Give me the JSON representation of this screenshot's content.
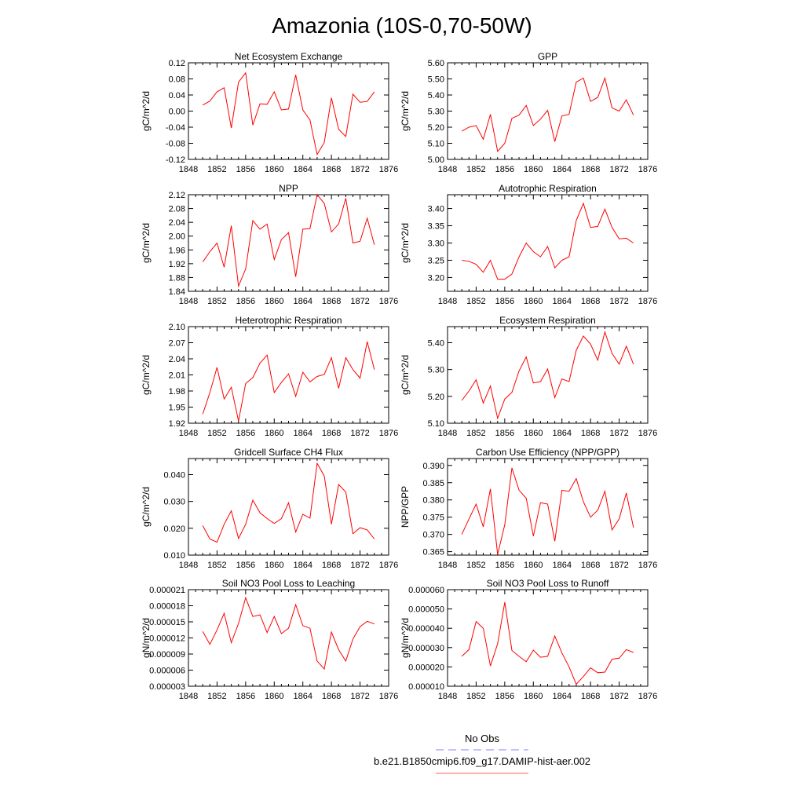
{
  "figure": {
    "title": "Amazonia (10S-0,70-50W)",
    "legend": [
      {
        "label": "No Obs",
        "color": "#8080ff",
        "dash": true
      },
      {
        "label": "b.e21.B1850cmip6.f09_g17.DAMIP-hist-aer.002",
        "color": "#ff6060",
        "dash": false
      }
    ],
    "line_color": "#ff0000"
  },
  "chart_data": [
    {
      "type": "line",
      "title": "Net Ecosystem Exchange",
      "ylabel": "gC/m^2/d",
      "xlim": [
        1848,
        1876
      ],
      "xticks": [
        1848,
        1852,
        1856,
        1860,
        1864,
        1868,
        1872,
        1876
      ],
      "ylim": [
        -0.12,
        0.12
      ],
      "yticks": [
        "-0.12",
        "-0.08",
        "-0.04",
        "0.00",
        "0.04",
        "0.08",
        "0.12"
      ],
      "x": [
        1850,
        1851,
        1852,
        1853,
        1854,
        1855,
        1856,
        1857,
        1858,
        1859,
        1860,
        1861,
        1862,
        1863,
        1864,
        1865,
        1866,
        1867,
        1868,
        1869,
        1870,
        1871,
        1872,
        1873,
        1874
      ],
      "values": [
        0.015,
        0.025,
        0.048,
        0.058,
        -0.042,
        0.072,
        0.095,
        -0.035,
        0.018,
        0.017,
        0.048,
        0.003,
        0.005,
        0.09,
        0.003,
        -0.022,
        -0.108,
        -0.078,
        0.033,
        -0.045,
        -0.063,
        0.042,
        0.022,
        0.024,
        0.048
      ]
    },
    {
      "type": "line",
      "title": "GPP",
      "ylabel": "gC/m^2/d",
      "xlim": [
        1848,
        1876
      ],
      "xticks": [
        1848,
        1852,
        1856,
        1860,
        1864,
        1868,
        1872,
        1876
      ],
      "ylim": [
        5.0,
        5.6
      ],
      "yticks": [
        "5.00",
        "5.10",
        "5.20",
        "5.30",
        "5.40",
        "5.50",
        "5.60"
      ],
      "x": [
        1850,
        1851,
        1852,
        1853,
        1854,
        1855,
        1856,
        1857,
        1858,
        1859,
        1860,
        1861,
        1862,
        1863,
        1864,
        1865,
        1866,
        1867,
        1868,
        1869,
        1870,
        1871,
        1872,
        1873,
        1874
      ],
      "values": [
        5.175,
        5.2,
        5.21,
        5.125,
        5.28,
        5.05,
        5.1,
        5.255,
        5.275,
        5.335,
        5.21,
        5.25,
        5.305,
        5.11,
        5.27,
        5.28,
        5.48,
        5.505,
        5.36,
        5.385,
        5.505,
        5.32,
        5.3,
        5.37,
        5.275
      ]
    },
    {
      "type": "line",
      "title": "NPP",
      "ylabel": "gC/m^2/d",
      "xlim": [
        1848,
        1876
      ],
      "xticks": [
        1848,
        1852,
        1856,
        1860,
        1864,
        1868,
        1872,
        1876
      ],
      "ylim": [
        1.84,
        2.12
      ],
      "yticks": [
        "1.84",
        "1.88",
        "1.92",
        "1.96",
        "2.00",
        "2.04",
        "2.08",
        "2.12"
      ],
      "x": [
        1850,
        1851,
        1852,
        1853,
        1854,
        1855,
        1856,
        1857,
        1858,
        1859,
        1860,
        1861,
        1862,
        1863,
        1864,
        1865,
        1866,
        1867,
        1868,
        1869,
        1870,
        1871,
        1872,
        1873,
        1874
      ],
      "values": [
        1.925,
        1.955,
        1.98,
        1.91,
        2.03,
        1.855,
        1.905,
        2.045,
        2.02,
        2.035,
        1.932,
        1.99,
        2.01,
        1.882,
        2.02,
        2.022,
        2.12,
        2.095,
        2.012,
        2.035,
        2.11,
        1.98,
        1.985,
        2.052,
        1.975
      ]
    },
    {
      "type": "line",
      "title": "Autotrophic Respiration",
      "ylabel": "gC/m^2/d",
      "xlim": [
        1848,
        1876
      ],
      "xticks": [
        1848,
        1852,
        1856,
        1860,
        1864,
        1868,
        1872,
        1876
      ],
      "ylim": [
        3.16,
        3.44
      ],
      "yticks": [
        "3.20",
        "3.25",
        "3.30",
        "3.35",
        "3.40"
      ],
      "x": [
        1850,
        1851,
        1852,
        1853,
        1854,
        1855,
        1856,
        1857,
        1858,
        1859,
        1860,
        1861,
        1862,
        1863,
        1864,
        1865,
        1866,
        1867,
        1868,
        1869,
        1870,
        1871,
        1872,
        1873,
        1874
      ],
      "values": [
        3.25,
        3.247,
        3.238,
        3.215,
        3.25,
        3.195,
        3.195,
        3.21,
        3.26,
        3.3,
        3.275,
        3.26,
        3.29,
        3.228,
        3.25,
        3.26,
        3.365,
        3.415,
        3.345,
        3.348,
        3.398,
        3.345,
        3.312,
        3.314,
        3.3
      ]
    },
    {
      "type": "line",
      "title": "Heterotrophic Respiration",
      "ylabel": "gC/m^2/d",
      "xlim": [
        1848,
        1876
      ],
      "xticks": [
        1848,
        1852,
        1856,
        1860,
        1864,
        1868,
        1872,
        1876
      ],
      "ylim": [
        1.92,
        2.1
      ],
      "yticks": [
        "1.92",
        "1.95",
        "1.98",
        "2.01",
        "2.04",
        "2.07",
        "2.10"
      ],
      "x": [
        1850,
        1851,
        1852,
        1853,
        1854,
        1855,
        1856,
        1857,
        1858,
        1859,
        1860,
        1861,
        1862,
        1863,
        1864,
        1865,
        1866,
        1867,
        1868,
        1869,
        1870,
        1871,
        1872,
        1873,
        1874
      ],
      "values": [
        1.937,
        1.977,
        2.024,
        1.965,
        1.987,
        1.924,
        1.994,
        2.005,
        2.032,
        2.047,
        1.977,
        1.996,
        2.012,
        1.97,
        2.015,
        1.997,
        2.007,
        2.011,
        2.042,
        1.985,
        2.042,
        2.02,
        2.004,
        2.072,
        2.02
      ]
    },
    {
      "type": "line",
      "title": "Ecosystem Respiration",
      "ylabel": "gC/m^2/d",
      "xlim": [
        1848,
        1876
      ],
      "xticks": [
        1848,
        1852,
        1856,
        1860,
        1864,
        1868,
        1872,
        1876
      ],
      "ylim": [
        5.1,
        5.46
      ],
      "yticks": [
        "5.10",
        "5.20",
        "5.30",
        "5.40"
      ],
      "x": [
        1850,
        1851,
        1852,
        1853,
        1854,
        1855,
        1856,
        1857,
        1858,
        1859,
        1860,
        1861,
        1862,
        1863,
        1864,
        1865,
        1866,
        1867,
        1868,
        1869,
        1870,
        1871,
        1872,
        1873,
        1874
      ],
      "values": [
        5.185,
        5.22,
        5.262,
        5.175,
        5.238,
        5.118,
        5.19,
        5.215,
        5.295,
        5.347,
        5.25,
        5.255,
        5.302,
        5.195,
        5.265,
        5.255,
        5.372,
        5.425,
        5.395,
        5.335,
        5.44,
        5.36,
        5.32,
        5.387,
        5.32
      ]
    },
    {
      "type": "line",
      "title": "Gridcell Surface CH4 Flux",
      "ylabel": "gC/m^2/d",
      "xlim": [
        1848,
        1876
      ],
      "xticks": [
        1848,
        1852,
        1856,
        1860,
        1864,
        1868,
        1872,
        1876
      ],
      "ylim": [
        0.01,
        0.046
      ],
      "yticks": [
        "0.010",
        "0.020",
        "0.030",
        "0.040"
      ],
      "x": [
        1850,
        1851,
        1852,
        1853,
        1854,
        1855,
        1856,
        1857,
        1858,
        1859,
        1860,
        1861,
        1862,
        1863,
        1864,
        1865,
        1866,
        1867,
        1868,
        1869,
        1870,
        1871,
        1872,
        1873,
        1874
      ],
      "values": [
        0.021,
        0.016,
        0.0148,
        0.0215,
        0.0265,
        0.0162,
        0.0215,
        0.0305,
        0.0258,
        0.0236,
        0.0218,
        0.0236,
        0.0295,
        0.0186,
        0.0252,
        0.0238,
        0.0442,
        0.0395,
        0.0215,
        0.0363,
        0.0335,
        0.018,
        0.0202,
        0.0194,
        0.016
      ]
    },
    {
      "type": "line",
      "title": "Carbon Use Efficiency (NPP/GPP)",
      "ylabel": "NPP/GPP",
      "xlim": [
        1848,
        1876
      ],
      "xticks": [
        1848,
        1852,
        1856,
        1860,
        1864,
        1868,
        1872,
        1876
      ],
      "ylim": [
        0.364,
        0.392
      ],
      "yticks": [
        "0.365",
        "0.370",
        "0.375",
        "0.380",
        "0.385",
        "0.390"
      ],
      "x": [
        1850,
        1851,
        1852,
        1853,
        1854,
        1855,
        1856,
        1857,
        1858,
        1859,
        1860,
        1861,
        1862,
        1863,
        1864,
        1865,
        1866,
        1867,
        1868,
        1869,
        1870,
        1871,
        1872,
        1873,
        1874
      ],
      "values": [
        0.37,
        0.3745,
        0.3788,
        0.3722,
        0.3832,
        0.3642,
        0.3728,
        0.3893,
        0.3828,
        0.3805,
        0.3695,
        0.3792,
        0.3788,
        0.368,
        0.3828,
        0.3825,
        0.3862,
        0.3795,
        0.375,
        0.377,
        0.3825,
        0.3713,
        0.3745,
        0.382,
        0.372
      ]
    },
    {
      "type": "line",
      "title": "Soil NO3 Pool Loss to Leaching",
      "ylabel": "gN/m^2/d",
      "xlim": [
        1848,
        1876
      ],
      "xticks": [
        1848,
        1852,
        1856,
        1860,
        1864,
        1868,
        1872,
        1876
      ],
      "ylim": [
        3e-06,
        2.1e-05
      ],
      "yticks": [
        "0.000003",
        "0.000006",
        "0.000009",
        "0.000012",
        "0.000015",
        "0.000018",
        "0.000021"
      ],
      "x": [
        1850,
        1851,
        1852,
        1853,
        1854,
        1855,
        1856,
        1857,
        1858,
        1859,
        1860,
        1861,
        1862,
        1863,
        1864,
        1865,
        1866,
        1867,
        1868,
        1869,
        1870,
        1871,
        1872,
        1873,
        1874
      ],
      "values": [
        1.32e-05,
        1.08e-05,
        1.35e-05,
        1.66e-05,
        1.11e-05,
        1.47e-05,
        1.95e-05,
        1.6e-05,
        1.63e-05,
        1.3e-05,
        1.6e-05,
        1.28e-05,
        1.38e-05,
        1.82e-05,
        1.43e-05,
        1.38e-05,
        7.7e-06,
        6.2e-06,
        1.31e-05,
        9.8e-06,
        7.7e-06,
        1.18e-05,
        1.41e-05,
        1.51e-05,
        1.46e-05
      ]
    },
    {
      "type": "line",
      "title": "Soil NO3 Pool Loss to Runoff",
      "ylabel": "gN/m^2/d",
      "xlim": [
        1848,
        1876
      ],
      "xticks": [
        1848,
        1852,
        1856,
        1860,
        1864,
        1868,
        1872,
        1876
      ],
      "ylim": [
        1e-05,
        6e-05
      ],
      "yticks": [
        "0.000010",
        "0.000020",
        "0.000030",
        "0.000040",
        "0.000050",
        "0.000060"
      ],
      "x": [
        1850,
        1851,
        1852,
        1853,
        1854,
        1855,
        1856,
        1857,
        1858,
        1859,
        1860,
        1861,
        1862,
        1863,
        1864,
        1865,
        1866,
        1867,
        1868,
        1869,
        1870,
        1871,
        1872,
        1873,
        1874
      ],
      "values": [
        2.55e-05,
        2.9e-05,
        4.35e-05,
        4e-05,
        2.05e-05,
        3.2e-05,
        5.35e-05,
        2.85e-05,
        2.55e-05,
        2.27e-05,
        2.87e-05,
        2.5e-05,
        2.55e-05,
        3.6e-05,
        2.72e-05,
        2e-05,
        1.1e-05,
        1.5e-05,
        1.95e-05,
        1.7e-05,
        1.73e-05,
        2.4e-05,
        2.45e-05,
        2.9e-05,
        2.75e-05
      ]
    }
  ]
}
